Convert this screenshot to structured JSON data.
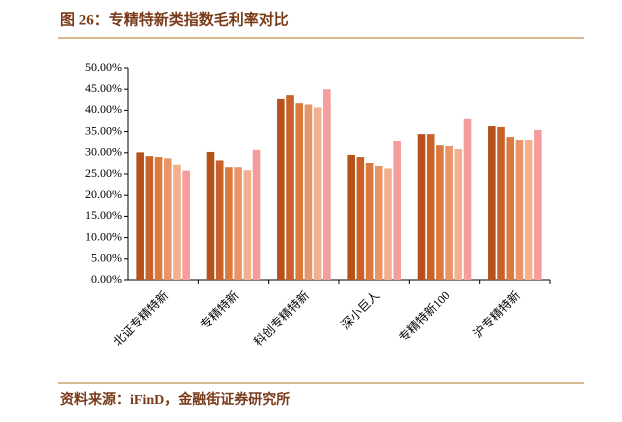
{
  "chart_data": {
    "type": "bar",
    "title": "图 26：专精特新类指数毛利率对比",
    "source": "资料来源：iFinD，金融街证券研究所",
    "categories": [
      "北证专精特新",
      "专精特新",
      "科创专精特新",
      "深小巨人",
      "专精特新100",
      "沪专精特新"
    ],
    "series": [
      {
        "color": "#b5521c",
        "values": [
          30.1,
          30.2,
          42.7,
          29.5,
          34.4,
          36.3
        ]
      },
      {
        "color": "#c8612a",
        "values": [
          29.2,
          28.2,
          43.6,
          29.0,
          34.4,
          36.1
        ]
      },
      {
        "color": "#d97a3e",
        "values": [
          29.0,
          26.6,
          41.7,
          27.6,
          31.8,
          33.7
        ]
      },
      {
        "color": "#e8956a",
        "values": [
          28.7,
          26.6,
          41.4,
          26.9,
          31.6,
          33.0
        ]
      },
      {
        "color": "#f2b08e",
        "values": [
          27.2,
          25.9,
          40.7,
          26.3,
          30.9,
          33.0
        ]
      },
      {
        "color": "#f59c9c",
        "values": [
          25.8,
          30.7,
          45.0,
          32.8,
          38.0,
          35.4
        ]
      }
    ],
    "ylim": [
      0,
      50
    ],
    "yticks": [
      {
        "value": 0,
        "label": "0.00%"
      },
      {
        "value": 5,
        "label": "5.00%"
      },
      {
        "value": 10,
        "label": "10.00%"
      },
      {
        "value": 15,
        "label": "15.00%"
      },
      {
        "value": 20,
        "label": "20.00%"
      },
      {
        "value": 25,
        "label": "25.00%"
      },
      {
        "value": 30,
        "label": "30.00%"
      },
      {
        "value": 35,
        "label": "35.00%"
      },
      {
        "value": 40,
        "label": "40.00%"
      },
      {
        "value": 45,
        "label": "45.00%"
      },
      {
        "value": 50,
        "label": "50.00%"
      }
    ]
  }
}
